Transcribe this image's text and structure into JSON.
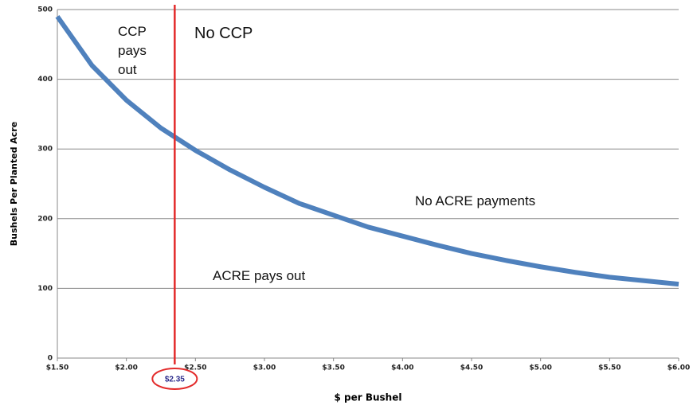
{
  "chart_data": {
    "type": "line",
    "x_label": "$ per Bushel",
    "y_label": "Bushels Per Planted Acre",
    "x": [
      1.5,
      1.75,
      2.0,
      2.25,
      2.5,
      2.75,
      3.0,
      3.25,
      3.5,
      3.75,
      4.0,
      4.25,
      4.5,
      4.75,
      5.0,
      5.25,
      5.5,
      5.75,
      6.0
    ],
    "series": [
      {
        "color": "#4f81bd",
        "values": [
          490,
          420,
          370,
          330,
          298,
          270,
          245,
          222,
          205,
          188,
          175,
          162,
          150,
          140,
          131,
          123,
          116,
          111,
          106
        ]
      }
    ],
    "xlim": [
      1.5,
      6.0
    ],
    "xticks": [
      {
        "value": 1.5,
        "label": "$1.50"
      },
      {
        "value": 2.0,
        "label": "$2.00"
      },
      {
        "value": 2.5,
        "label": "$2.50"
      },
      {
        "value": 3.0,
        "label": "$3.00"
      },
      {
        "value": 3.5,
        "label": "$3.50"
      },
      {
        "value": 4.0,
        "label": "$4.00"
      },
      {
        "value": 4.5,
        "label": "$4.50"
      },
      {
        "value": 5.0,
        "label": "$5.00"
      },
      {
        "value": 5.5,
        "label": "$5.50"
      },
      {
        "value": 6.0,
        "label": "$6.00"
      }
    ],
    "ylim": [
      0,
      500
    ],
    "yticks": [
      0,
      100,
      200,
      300,
      400,
      500
    ],
    "grid": true,
    "threshold": {
      "value": 2.35,
      "label": "$2.35",
      "color": "#e32b2b"
    },
    "annotations": [
      "CCP pays out",
      "No CCP",
      "No ACRE payments",
      "ACRE pays out"
    ]
  }
}
